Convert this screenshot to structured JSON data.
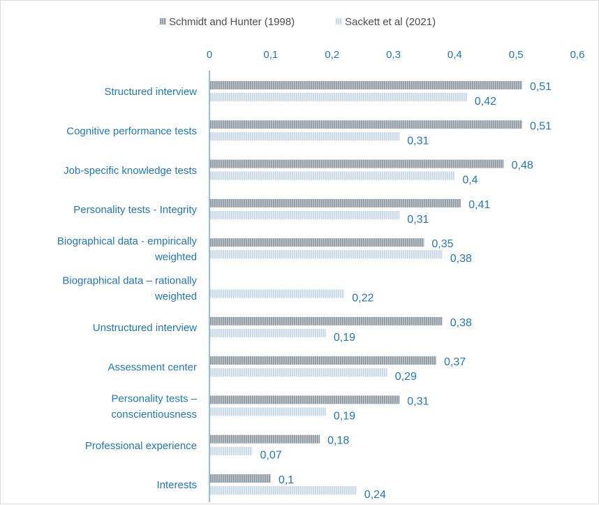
{
  "chart_data": {
    "type": "bar",
    "orientation": "horizontal",
    "title": "",
    "xlabel": "",
    "ylabel": "",
    "xlim": [
      0,
      0.6
    ],
    "x_ticks": [
      0,
      0.1,
      0.2,
      0.3,
      0.4,
      0.5,
      0.6
    ],
    "x_tick_labels": [
      "0",
      "0,1",
      "0,2",
      "0,3",
      "0,4",
      "0,5",
      "0,6"
    ],
    "x_axis_position": "top",
    "grid": false,
    "legend_position": "top",
    "categories": [
      "Structured interview",
      "Cognitive performance tests",
      "Job-specific knowledge tests",
      "Personality tests - Integrity",
      "Biographical data - empirically weighted",
      "Biographical data – rationally weighted",
      "Unstructured interview",
      "Assessment center",
      "Personality tests – conscientiousness",
      "Professional experience",
      "Interests"
    ],
    "category_label_lines": [
      [
        "Structured interview"
      ],
      [
        "Cognitive performance tests"
      ],
      [
        "Job-specific knowledge tests"
      ],
      [
        "Personality tests - Integrity"
      ],
      [
        "Biographical data - empirically",
        "weighted"
      ],
      [
        "Biographical data – rationally",
        "weighted"
      ],
      [
        "Unstructured interview"
      ],
      [
        "Assessment center"
      ],
      [
        "Personality tests –",
        "conscientiousness"
      ],
      [
        "Professional experience"
      ],
      [
        "Interests"
      ]
    ],
    "series": [
      {
        "name": "Schmidt and Hunter (1998)",
        "values": [
          0.51,
          0.51,
          0.48,
          0.41,
          0.35,
          null,
          0.38,
          0.37,
          0.31,
          0.18,
          0.1
        ],
        "labels": [
          "0,51",
          "0,51",
          "0,48",
          "0,41",
          "0,35",
          null,
          "0,38",
          "0,37",
          "0,31",
          "0,18",
          "0,1"
        ],
        "color": "#8c96a0",
        "stripe_color": "#c4c9ce"
      },
      {
        "name": "Sackett et al (2021)",
        "values": [
          0.42,
          0.31,
          0.4,
          0.31,
          0.38,
          0.22,
          0.19,
          0.29,
          0.19,
          0.07,
          0.24
        ],
        "labels": [
          "0,42",
          "0,31",
          "0,4",
          "0,31",
          "0,38",
          "0,22",
          "0,19",
          "0,29",
          "0,19",
          "0,07",
          "0,24"
        ],
        "color": "#c7d6e3",
        "stripe_color": "#e8eff5"
      }
    ],
    "colors": {
      "text": "#1f77c0",
      "legend_text": "#4d4d4d",
      "axis_line": "#8fbfe6"
    }
  }
}
